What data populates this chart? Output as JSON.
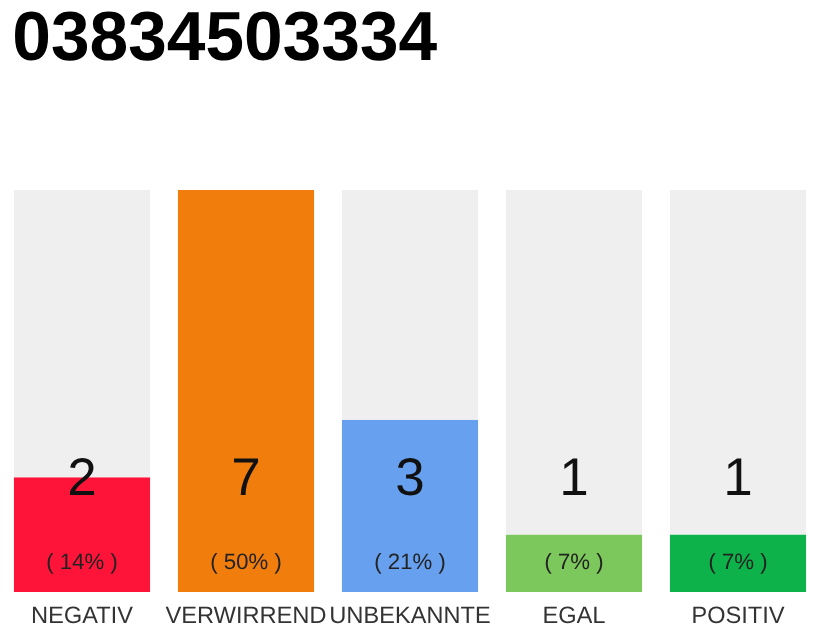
{
  "chart_data": {
    "type": "bar",
    "title": "03834503334",
    "categories": [
      "NEGATIV",
      "VERWIRREND",
      "UNBEKANNTE",
      "EGAL",
      "POSITIV"
    ],
    "stacked": true,
    "series": [
      {
        "colors": [
          "#ff1439",
          "#f07d0c",
          "#66a0ee",
          "#7dc85c",
          "#0db34a"
        ],
        "values": [
          2,
          7,
          3,
          1,
          1
        ],
        "value_labels": [
          "2\n( 14% )",
          "7\n( 50% )",
          "3\n( 21% )",
          "1\n( 7% )",
          "1\n( 7% )"
        ]
      },
      {
        "color": "#efefef",
        "values": [
          5,
          0,
          4,
          6,
          6
        ]
      }
    ],
    "grid": false,
    "legend": false,
    "tick_labels": "x"
  }
}
